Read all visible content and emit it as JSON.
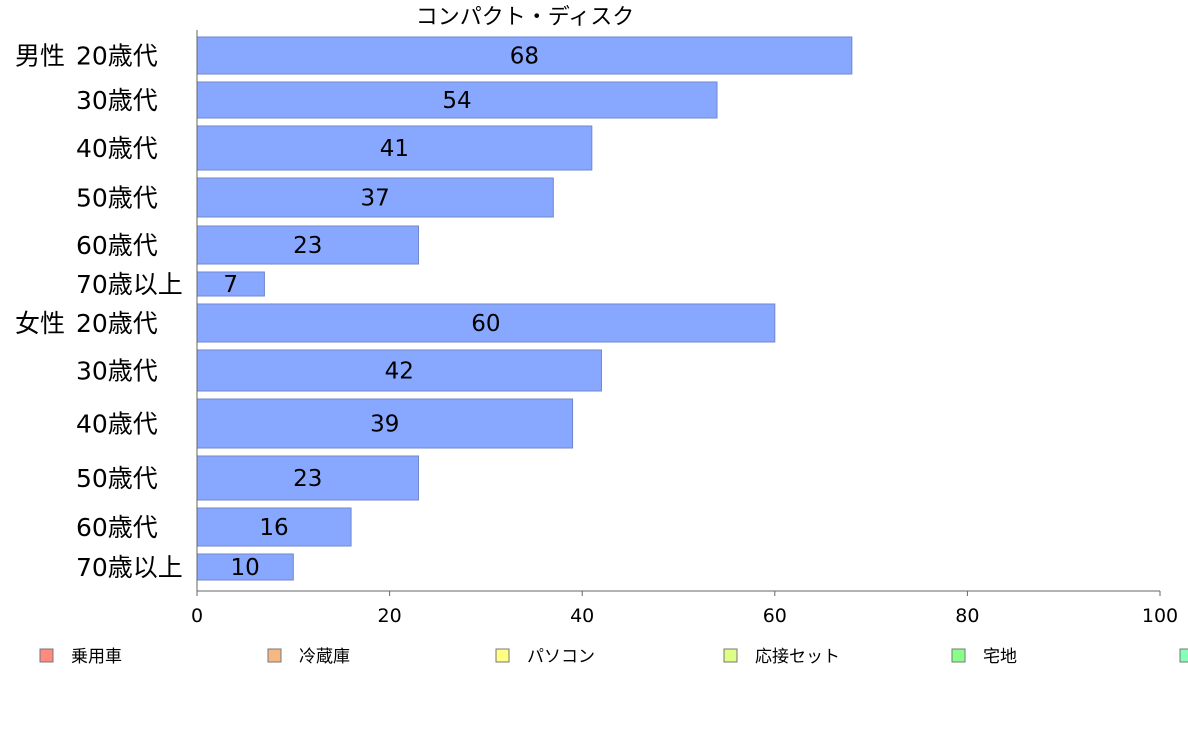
{
  "chart_data": {
    "type": "bar",
    "orientation": "horizontal",
    "title": "コンパクト・ディスク",
    "groups": [
      "男性",
      "女性"
    ],
    "categories": [
      {
        "group": "男性",
        "label": "20歳代",
        "value": 68
      },
      {
        "group": "",
        "label": "30歳代",
        "value": 54
      },
      {
        "group": "",
        "label": "40歳代",
        "value": 41
      },
      {
        "group": "",
        "label": "50歳代",
        "value": 37
      },
      {
        "group": "",
        "label": "60歳代",
        "value": 23
      },
      {
        "group": "",
        "label": "70歳以上",
        "value": 7
      },
      {
        "group": "女性",
        "label": "20歳代",
        "value": 60
      },
      {
        "group": "",
        "label": "30歳代",
        "value": 42
      },
      {
        "group": "",
        "label": "40歳代",
        "value": 39
      },
      {
        "group": "",
        "label": "50歳代",
        "value": 23
      },
      {
        "group": "",
        "label": "60歳代",
        "value": 16
      },
      {
        "group": "",
        "label": "70歳以上",
        "value": 10
      }
    ],
    "xlim": [
      0,
      100
    ],
    "xticks": [
      0,
      20,
      40,
      60,
      80,
      100
    ],
    "grid": false,
    "bar_color": "#88A8FF",
    "bar_stroke": "#6F86CC",
    "legend": {
      "placement": "bottom",
      "items": [
        {
          "label": "乗用車",
          "color": "#FF8A80"
        },
        {
          "label": "冷蔵庫",
          "color": "#F5B885"
        },
        {
          "label": "パソコン",
          "color": "#FFFF88"
        },
        {
          "label": "応接セット",
          "color": "#DDFF88"
        },
        {
          "label": "宅地",
          "color": "#88FF88"
        },
        {
          "label": "",
          "color": "#88FFB8"
        }
      ]
    }
  }
}
